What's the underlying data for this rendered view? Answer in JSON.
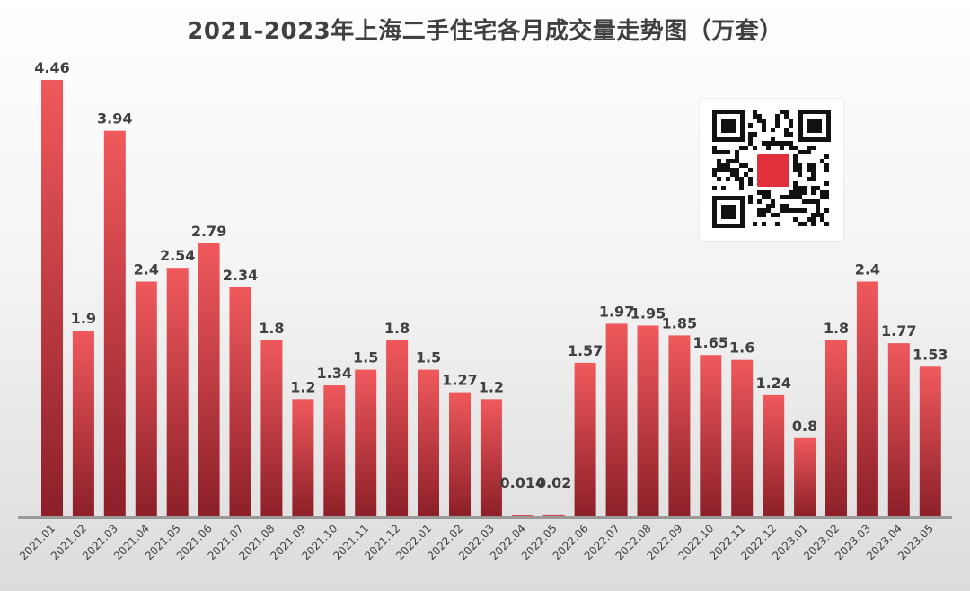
{
  "chart_data": {
    "type": "bar",
    "title": "2021-2023年上海二手住宅各月成交量走势图（万套）",
    "xlabel": "",
    "ylabel": "",
    "ylim": [
      0,
      4.8
    ],
    "grid": false,
    "legend": "none",
    "categories": [
      "2021.01",
      "2021.02",
      "2021.03",
      "2021.04",
      "2021.05",
      "2021.06",
      "2021.07",
      "2021.08",
      "2021.09",
      "2021.10",
      "2021.11",
      "2021.12",
      "2022.01",
      "2022.02",
      "2022.03",
      "2022.04",
      "2022.05",
      "2022.06",
      "2022.07",
      "2022.08",
      "2022.09",
      "2022.10",
      "2022.11",
      "2022.12",
      "2023.01",
      "2023.02",
      "2023.03",
      "2023.04",
      "2023.05"
    ],
    "values": [
      4.46,
      1.9,
      3.94,
      2.4,
      2.54,
      2.79,
      2.34,
      1.8,
      1.2,
      1.34,
      1.5,
      1.8,
      1.5,
      1.27,
      1.2,
      0.014,
      0.02,
      1.57,
      1.97,
      1.95,
      1.85,
      1.65,
      1.6,
      1.24,
      0.8,
      1.8,
      2.4,
      1.77,
      1.53
    ],
    "data_labels": [
      "4.46",
      "1.9",
      "3.94",
      "2.4",
      "2.54",
      "2.79",
      "2.34",
      "1.8",
      "1.2",
      "1.34",
      "1.5",
      "1.8",
      "1.5",
      "1.27",
      "1.2",
      "0.014",
      "0.02",
      "1.57",
      "1.97",
      "1.95",
      "1.85",
      "1.65",
      "1.6",
      "1.24",
      "0.8",
      "1.8",
      "2.4",
      "1.77",
      "1.53"
    ],
    "bar_color_top": "#f0595c",
    "bar_color_bottom": "#8c1f28"
  },
  "colors": {
    "title": "#404040",
    "label": "#404040"
  },
  "overlay": {
    "qr_code_icon": "qr-code-icon"
  }
}
